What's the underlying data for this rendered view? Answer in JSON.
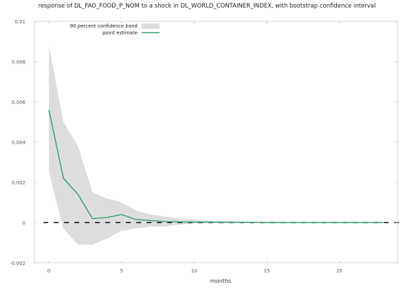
{
  "chart_data": {
    "type": "line",
    "title": "response of DL_FAO_FOOD_P_NOM to a shock in DL_WORLD_CONTAINER_INDEX, with bootstrap confidence interval",
    "xlabel": "months",
    "ylabel": "",
    "xlim": [
      -1,
      24
    ],
    "ylim": [
      -0.002,
      0.01
    ],
    "x_ticks": [
      0,
      5,
      10,
      15,
      20
    ],
    "y_ticks": [
      -0.002,
      0,
      0.002,
      0.004,
      0.006,
      0.008,
      0.01
    ],
    "y_tick_labels": [
      "-0.002",
      "0",
      "0.002",
      "0.004",
      "0.006",
      "0.008",
      "0.01"
    ],
    "grid": false,
    "legend": "top-left",
    "zero_line": true,
    "series": [
      {
        "name": "point estimate",
        "kind": "line",
        "color": "#2e9e68",
        "x": [
          0,
          1,
          2,
          3,
          4,
          5,
          6,
          7,
          8,
          9,
          10,
          11,
          12,
          13,
          14,
          15,
          16,
          17,
          18,
          19,
          20,
          21,
          22,
          23
        ],
        "values": [
          0.0056,
          0.0022,
          0.0014,
          0.0002,
          0.00025,
          0.0004,
          0.00015,
          0.0001,
          5e-05,
          3e-05,
          2e-05,
          2e-05,
          1e-05,
          1e-05,
          1e-05,
          0.0,
          0.0,
          0.0,
          0.0,
          0.0,
          0.0,
          0.0,
          0.0,
          0.0
        ]
      },
      {
        "name": "90 percent confidence band",
        "kind": "band",
        "color": "#dddddd",
        "x": [
          0,
          1,
          2,
          3,
          4,
          5,
          6,
          7,
          8,
          9,
          10,
          11,
          12,
          13,
          14,
          15,
          16,
          17,
          18,
          19,
          20,
          21,
          22,
          23
        ],
        "upper": [
          0.0088,
          0.005,
          0.0038,
          0.0015,
          0.0012,
          0.001,
          0.0006,
          0.0004,
          0.0003,
          0.0002,
          0.00015,
          0.0001,
          8e-05,
          6e-05,
          4e-05,
          3e-05,
          2e-05,
          1e-05,
          1e-05,
          1e-05,
          0.0,
          0.0,
          0.0,
          0.0
        ],
        "lower": [
          0.0025,
          -0.0003,
          -0.0011,
          -0.0011,
          -0.0008,
          -0.0004,
          -0.0003,
          -0.0002,
          -0.0002,
          -0.0001,
          -5e-05,
          -3e-05,
          -2e-05,
          -1e-05,
          -1e-05,
          0.0,
          0.0,
          0.0,
          0.0,
          0.0,
          0.0,
          0.0,
          0.0,
          0.0
        ]
      }
    ]
  }
}
